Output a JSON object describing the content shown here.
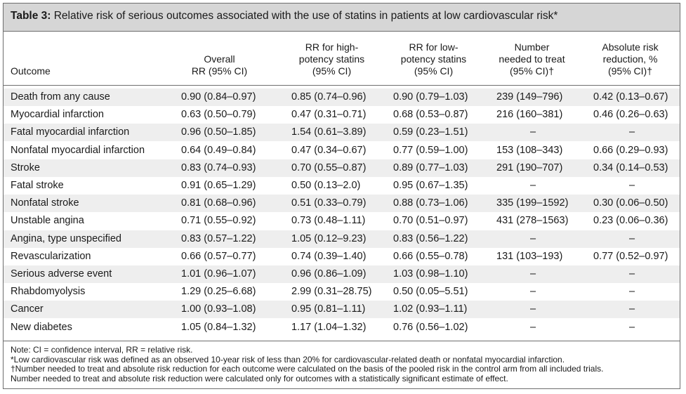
{
  "table": {
    "label": "Table 3:",
    "title": "Relative risk of serious outcomes associated with the use of statins in patients at low cardiovascular risk*",
    "headers": {
      "outcome": "Outcome",
      "overall": [
        "Overall",
        "RR (95% CI)"
      ],
      "high": [
        "RR for high-",
        "potency statins",
        "(95% CI)"
      ],
      "low": [
        "RR for low-",
        "potency statins",
        "(95% CI)"
      ],
      "nnt": [
        "Number",
        "needed to treat",
        "(95% CI)†"
      ],
      "arr": [
        "Absolute risk",
        "reduction, %",
        "(95% CI)†"
      ]
    },
    "rows": [
      {
        "outcome": "Death from any cause",
        "overall": "0.90 (0.84–0.97)",
        "high": "0.85 (0.74–0.96)",
        "low": "0.90 (0.79–1.03)",
        "nnt": "239 (149–796)",
        "arr": "0.42 (0.13–0.67)"
      },
      {
        "outcome": "Myocardial infarction",
        "overall": "0.63 (0.50–0.79)",
        "high": "0.47 (0.31–0.71)",
        "low": "0.68 (0.53–0.87)",
        "nnt": "216 (160–381)",
        "arr": "0.46 (0.26–0.63)"
      },
      {
        "outcome": "Fatal myocardial infarction",
        "overall": "0.96 (0.50–1.85)",
        "high": "1.54 (0.61–3.89)",
        "low": "0.59 (0.23–1.51)",
        "nnt": "–",
        "arr": "–"
      },
      {
        "outcome": "Nonfatal myocardial infarction",
        "overall": "0.64 (0.49–0.84)",
        "high": "0.47 (0.34–0.67)",
        "low": "0.77 (0.59–1.00)",
        "nnt": "153 (108–343)",
        "arr": "0.66 (0.29–0.93)"
      },
      {
        "outcome": "Stroke",
        "overall": "0.83 (0.74–0.93)",
        "high": "0.70 (0.55–0.87)",
        "low": "0.89 (0.77–1.03)",
        "nnt": "291 (190–707)",
        "arr": "0.34 (0.14–0.53)"
      },
      {
        "outcome": "Fatal stroke",
        "overall": "0.91 (0.65–1.29)",
        "high": "0.50 (0.13–2.0)",
        "low": "0.95 (0.67–1.35)",
        "nnt": "–",
        "arr": "–"
      },
      {
        "outcome": "Nonfatal stroke",
        "overall": "0.81 (0.68–0.96)",
        "high": "0.51 (0.33–0.79)",
        "low": "0.88 (0.73–1.06)",
        "nnt": "335 (199–1592)",
        "arr": "0.30 (0.06–0.50)"
      },
      {
        "outcome": "Unstable angina",
        "overall": "0.71 (0.55–0.92)",
        "high": "0.73 (0.48–1.11)",
        "low": "0.70 (0.51–0.97)",
        "nnt": "431 (278–1563)",
        "arr": "0.23 (0.06–0.36)"
      },
      {
        "outcome": "Angina, type unspecified",
        "overall": "0.83 (0.57–1.22)",
        "high": "1.05 (0.12–9.23)",
        "low": "0.83 (0.56–1.22)",
        "nnt": "–",
        "arr": "–"
      },
      {
        "outcome": "Revascularization",
        "overall": "0.66 (0.57–0.77)",
        "high": "0.74 (0.39–1.40)",
        "low": "0.66 (0.55–0.78)",
        "nnt": "131 (103–193)",
        "arr": "0.77 (0.52–0.97)"
      },
      {
        "outcome": "Serious adverse event",
        "overall": "1.01 (0.96–1.07)",
        "high": "0.96 (0.86–1.09)",
        "low": "1.03 (0.98–1.10)",
        "nnt": "–",
        "arr": "–"
      },
      {
        "outcome": "Rhabdomyolysis",
        "overall": "1.29 (0.25–6.68)",
        "high": "2.99 (0.31–28.75)",
        "low": "0.50 (0.05–5.51)",
        "nnt": "–",
        "arr": "–"
      },
      {
        "outcome": "Cancer",
        "overall": "1.00 (0.93–1.08)",
        "high": "0.95 (0.81–1.11)",
        "low": "1.02 (0.93–1.11)",
        "nnt": "–",
        "arr": "–"
      },
      {
        "outcome": "New diabetes",
        "overall": "1.05 (0.84–1.32)",
        "high": "1.17 (1.04–1.32)",
        "low": "0.76 (0.56–1.02)",
        "nnt": "–",
        "arr": "–"
      }
    ],
    "notes": [
      "Note: CI = confidence interval, RR = relative risk.",
      "*Low cardiovascular risk was defined as an observed 10-year risk of less than 20% for cardiovascular-related death or nonfatal myocardial infarction.",
      "†Number needed to treat and absolute risk reduction for each outcome were calculated on the basis of the pooled risk in the control arm from all included trials.",
      "Number needed to treat and absolute risk reduction were calculated only for outcomes with a statistically significant estimate of effect."
    ]
  }
}
